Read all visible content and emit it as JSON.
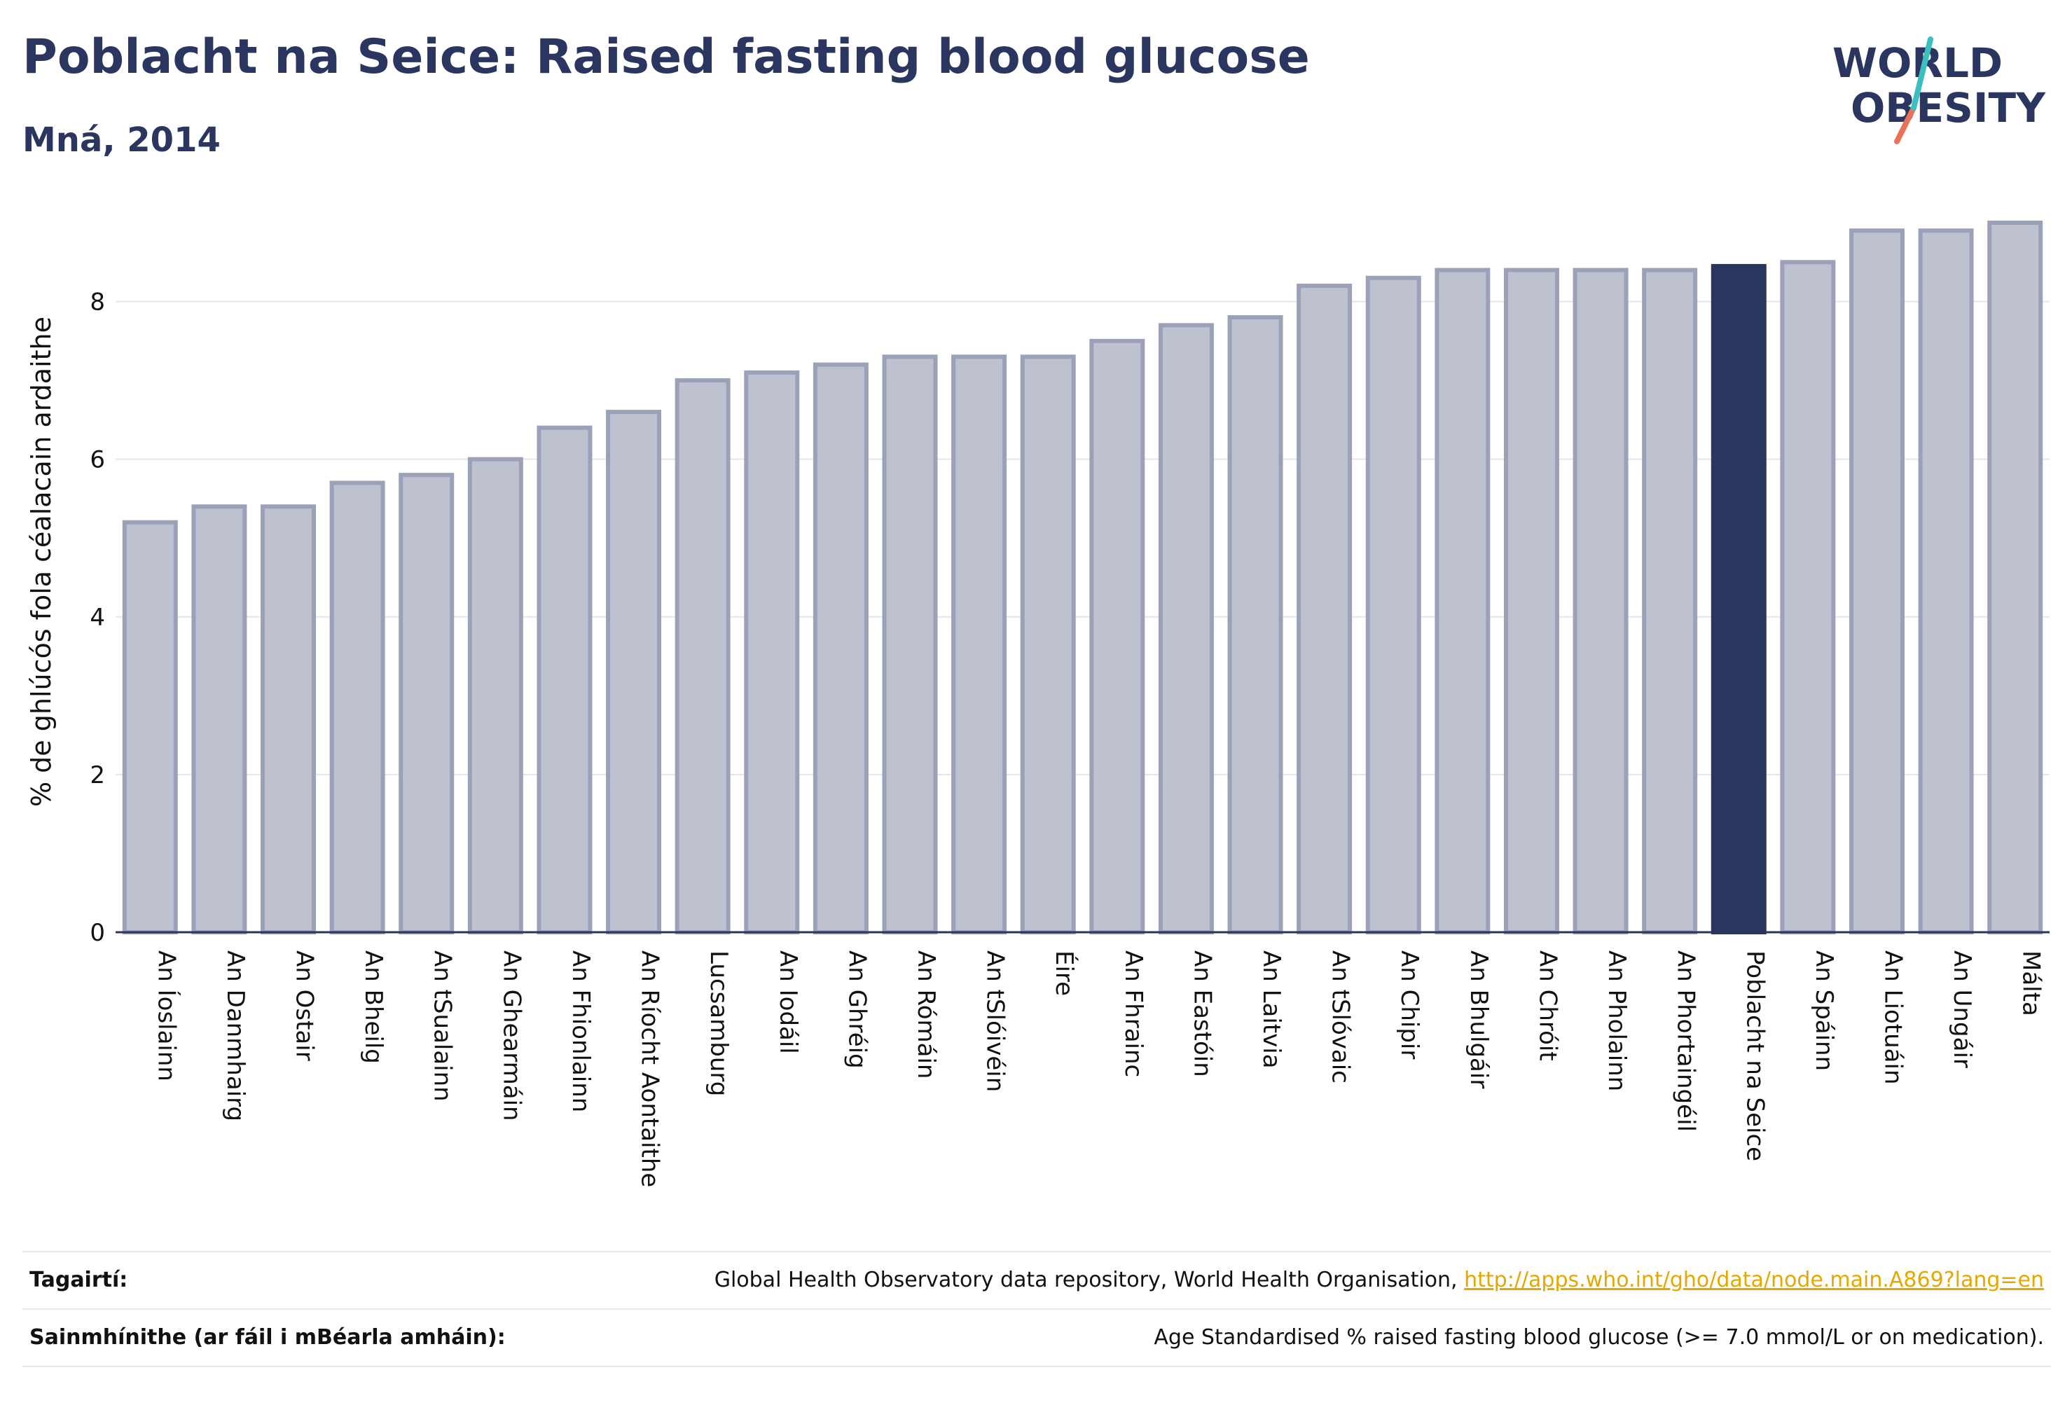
{
  "header": {
    "title": "Poblacht na Seice: Raised fasting blood glucose",
    "subtitle": "Mná, 2014"
  },
  "logo": {
    "line1": "WORLD",
    "line2": "OBESITY",
    "accent": "#e8735a",
    "accent2": "#3bbfbf"
  },
  "colors": {
    "bar": "#bec2cf",
    "bar_stroke": "#9aa1b8",
    "highlight": "#2a3560",
    "axis": "#2a3560",
    "grid": "#e4e6ec"
  },
  "chart_data": {
    "type": "bar",
    "ylabel": "% de ghlúcós fola céalacain ardaithe",
    "xlabel": "",
    "ylim": [
      0,
      9.0
    ],
    "yticks": [
      0,
      2,
      4,
      6,
      8
    ],
    "grid": true,
    "highlight": "Poblacht na Seice",
    "categories": [
      "An Íoslainn",
      "An Danmhairg",
      "An Ostair",
      "An Bheilg",
      "An tSualainn",
      "An Ghearmáin",
      "An Fhionlainn",
      "An Ríocht Aontaithe",
      "Lucsamburg",
      "An Iodáil",
      "An Ghréig",
      "An Rómáin",
      "An tSlóivéin",
      "Éire",
      "An Fhrainc",
      "An Eastóin",
      "An Laitvia",
      "An tSlóvaic",
      "An Chipir",
      "An Bhulgáir",
      "An Chróit",
      "An Pholainn",
      "An Phortaingéil",
      "Poblacht na Seice",
      "An Spáinn",
      "An Liotuáin",
      "An Ungáir",
      "Málta"
    ],
    "values": [
      5.2,
      5.4,
      5.4,
      5.7,
      5.8,
      6.0,
      6.4,
      6.6,
      7.0,
      7.1,
      7.2,
      7.3,
      7.3,
      7.3,
      7.5,
      7.7,
      7.8,
      8.2,
      8.3,
      8.4,
      8.4,
      8.4,
      8.4,
      8.45,
      8.5,
      8.9,
      8.9,
      9.0
    ]
  },
  "references": {
    "sources_label": "Tagairtí:",
    "sources_text": "Global Health Observatory data repository, World Health Organisation,",
    "sources_link": "http://apps.who.int/gho/data/node.main.A869?lang=en",
    "definitions_label": "Sainmhínithe (ar fáil i mBéarla amháin):",
    "definitions_text": "Age Standardised % raised fasting blood glucose (>= 7.0 mmol/L or on medication)."
  }
}
